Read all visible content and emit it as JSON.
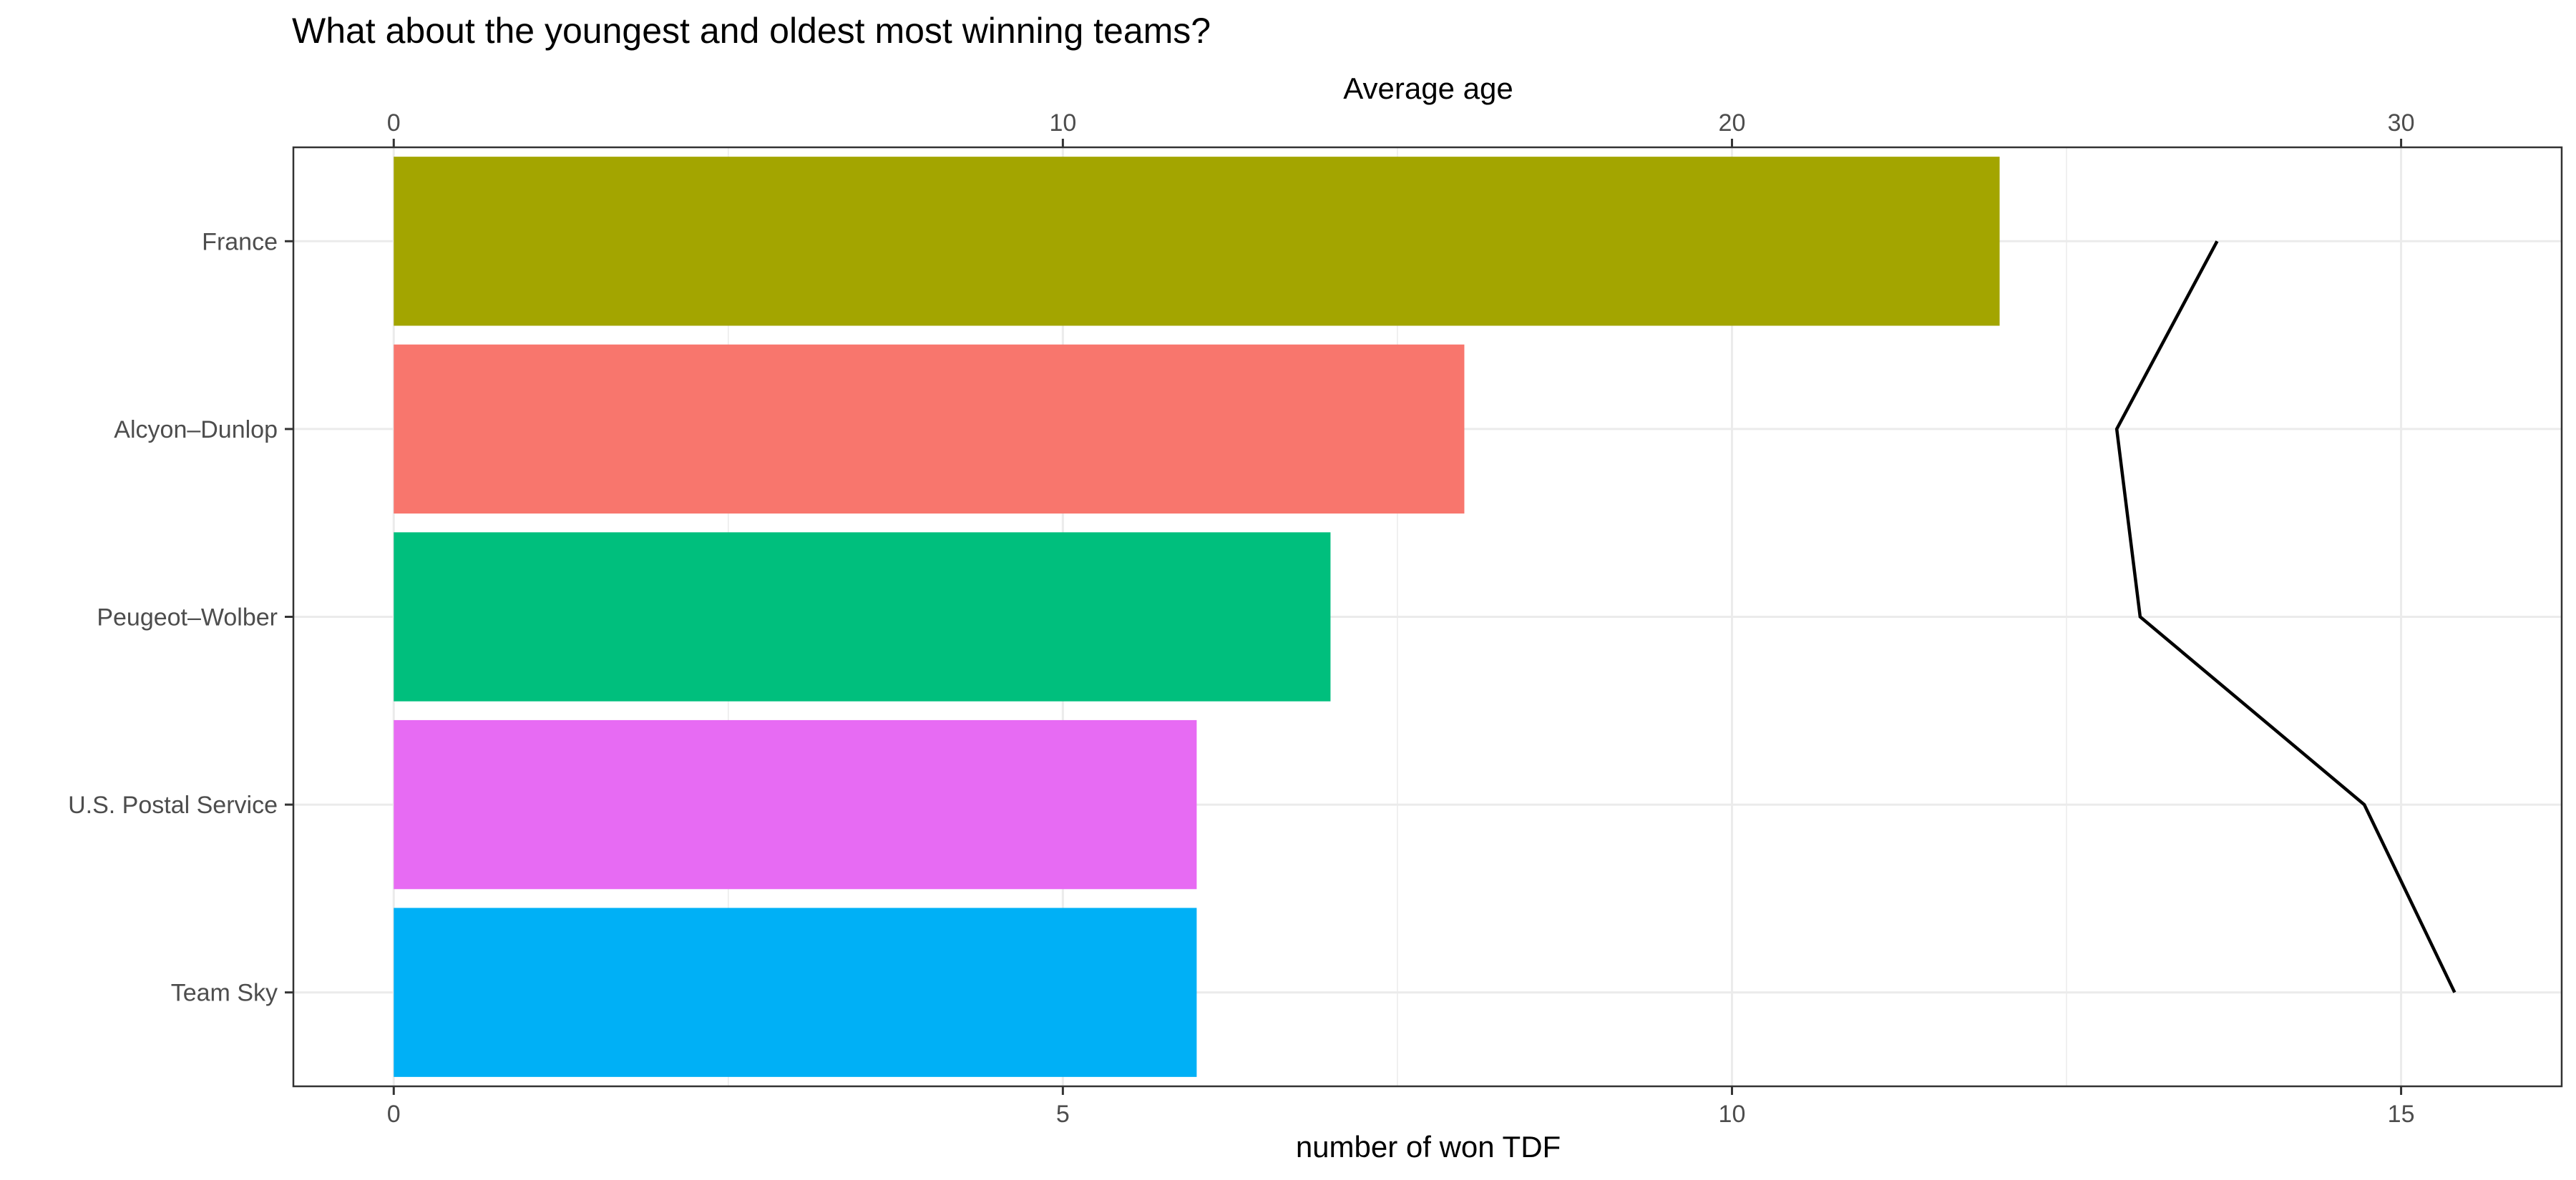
{
  "chart_data": {
    "type": "bar",
    "orientation": "horizontal",
    "title": "What about the youngest and oldest most winning teams?",
    "categories": [
      "France",
      "Alcyon–Dunlop",
      "Peugeot–Wolber",
      "U.S. Postal Service",
      "Team Sky"
    ],
    "values": [
      12,
      8,
      7,
      6,
      6
    ],
    "colors": [
      "#a3a500",
      "#f8766d",
      "#00bf7d",
      "#e76bf3",
      "#00b0f6"
    ],
    "xlabel": "number of won TDF",
    "xlim": [
      -0.75,
      16.2
    ],
    "xticks": [
      0,
      5,
      10,
      15
    ],
    "grid": true,
    "legend": "none",
    "secondary_axis": {
      "label": "Average age",
      "position": "top",
      "scale": 2,
      "ticks": [
        0,
        10,
        20,
        30
      ]
    },
    "line_series": {
      "name": "Average age",
      "values": [
        27.25,
        25.75,
        26.1,
        29.45,
        30.8
      ]
    }
  }
}
